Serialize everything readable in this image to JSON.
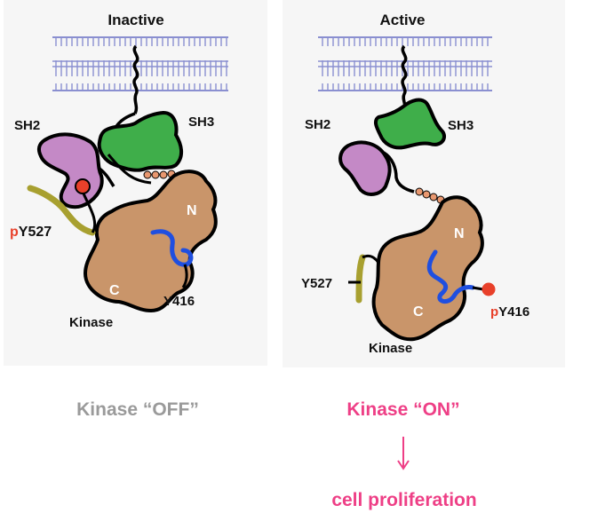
{
  "left": {
    "title": "Inactive",
    "sh2": "SH2",
    "sh3": "SH3",
    "n_lobe": "N",
    "c_lobe": "C",
    "kinase": "Kinase",
    "py527_p": "p",
    "py527_rest": "Y527",
    "y416": "Y416",
    "state": "Kinase “OFF”"
  },
  "right": {
    "title": "Active",
    "sh2": "SH2",
    "sh3": "SH3",
    "n_lobe": "N",
    "c_lobe": "C",
    "kinase": "Kinase",
    "y527": "Y527",
    "py416_p": "p",
    "py416_rest": "Y416",
    "state": "Kinase “ON”",
    "outcome": "cell proliferation"
  },
  "colors": {
    "membrane": "#8a8fd0",
    "kinase_domain": "#c9956a",
    "sh2": "#c489c6",
    "sh3": "#3fae4a",
    "linker_loop": "#1f4fe0",
    "tail": "#a8a030",
    "phosphate": "#e8402a",
    "off_text": "#9a9a9a",
    "on_text": "#ee3f86"
  }
}
